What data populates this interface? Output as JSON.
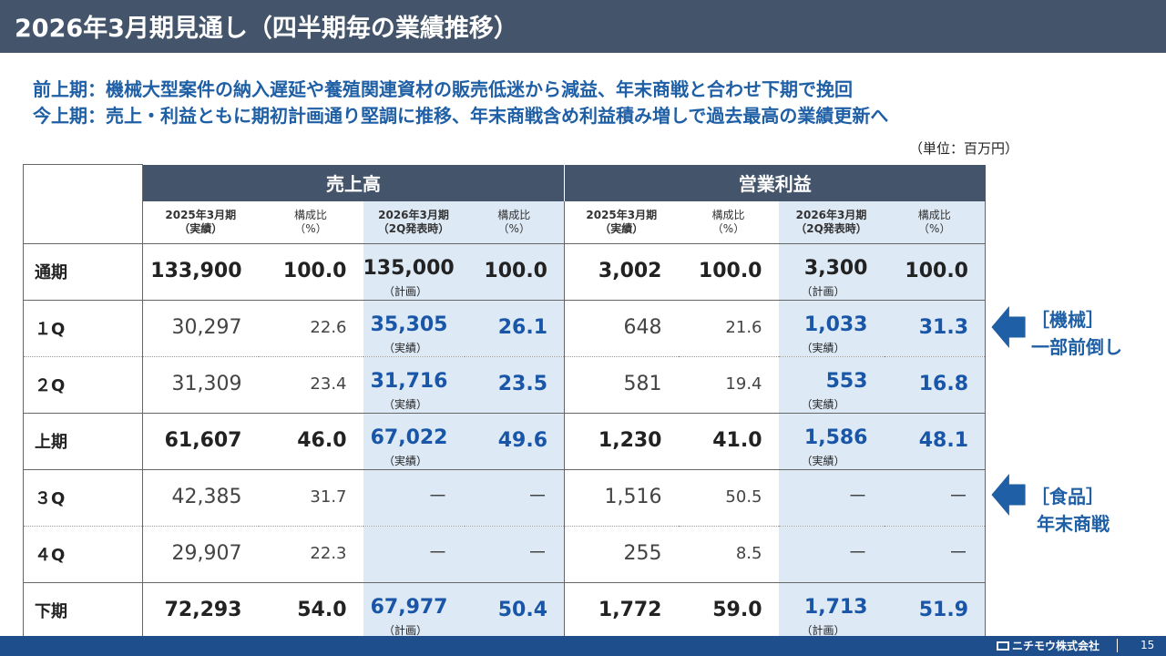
{
  "title": "2026年3月期見通し（四半期毎の業績推移）",
  "subtitle_1": "前上期：機械大型案件の納入遅延や養殖関連資材の販売低迷から減益、年末商戦と合わせ下期で挽回",
  "subtitle_2": "今上期：売上・利益ともに期初計画通り堅調に推移、年末商戦含め利益積み増しで過去最高の業績更新へ",
  "unit": "（単位：百万円）",
  "groups": {
    "sales": "売上高",
    "op": "営業利益"
  },
  "colheads": {
    "fy25": [
      "2025年3月期",
      "（実績）"
    ],
    "ratio": [
      "構成比",
      "（%）"
    ],
    "fy26": [
      "2026年3月期",
      "（2Q発表時）"
    ]
  },
  "rows": [
    {
      "label": "通期",
      "s25": "133,900",
      "s25r": "100.0",
      "s26": "135,000",
      "s26n": "（計画）",
      "s26r": "100.0",
      "o25": "3,002",
      "o25r": "100.0",
      "o26": "3,300",
      "o26n": "（計画）",
      "o26r": "100.0"
    },
    {
      "label": "１Q",
      "s25": "30,297",
      "s25r": "22.6",
      "s26": "35,305",
      "s26n": "（実績）",
      "s26r": "26.1",
      "o25": "648",
      "o25r": "21.6",
      "o26": "1,033",
      "o26n": "（実績）",
      "o26r": "31.3"
    },
    {
      "label": "２Q",
      "s25": "31,309",
      "s25r": "23.4",
      "s26": "31,716",
      "s26n": "（実績）",
      "s26r": "23.5",
      "o25": "581",
      "o25r": "19.4",
      "o26": "553",
      "o26n": "（実績）",
      "o26r": "16.8"
    },
    {
      "label": "上期",
      "s25": "61,607",
      "s25r": "46.0",
      "s26": "67,022",
      "s26n": "（実績）",
      "s26r": "49.6",
      "o25": "1,230",
      "o25r": "41.0",
      "o26": "1,586",
      "o26n": "（実績）",
      "o26r": "48.1"
    },
    {
      "label": "３Q",
      "s25": "42,385",
      "s25r": "31.7",
      "s26": "－",
      "s26n": "",
      "s26r": "－",
      "o25": "1,516",
      "o25r": "50.5",
      "o26": "－",
      "o26n": "",
      "o26r": "－"
    },
    {
      "label": "４Q",
      "s25": "29,907",
      "s25r": "22.3",
      "s26": "－",
      "s26n": "",
      "s26r": "－",
      "o25": "255",
      "o25r": "8.5",
      "o26": "－",
      "o26n": "",
      "o26r": "－"
    },
    {
      "label": "下期",
      "s25": "72,293",
      "s25r": "54.0",
      "s26": "67,977",
      "s26n": "（計画）",
      "s26r": "50.4",
      "o25": "1,772",
      "o25r": "59.0",
      "o26": "1,713",
      "o26n": "（計画）",
      "o26r": "51.9"
    }
  ],
  "callouts": [
    {
      "line1": "［機械］",
      "line2": "一部前倒し"
    },
    {
      "line1": "［食品］",
      "line2": "年末商戦"
    }
  ],
  "footer": {
    "company": "ニチモウ株式会社",
    "page": "15"
  },
  "colors": {
    "header": "#44546a",
    "accent": "#1f5fa5",
    "highlight": "#dde9f5",
    "footer": "#1f4e8c"
  }
}
